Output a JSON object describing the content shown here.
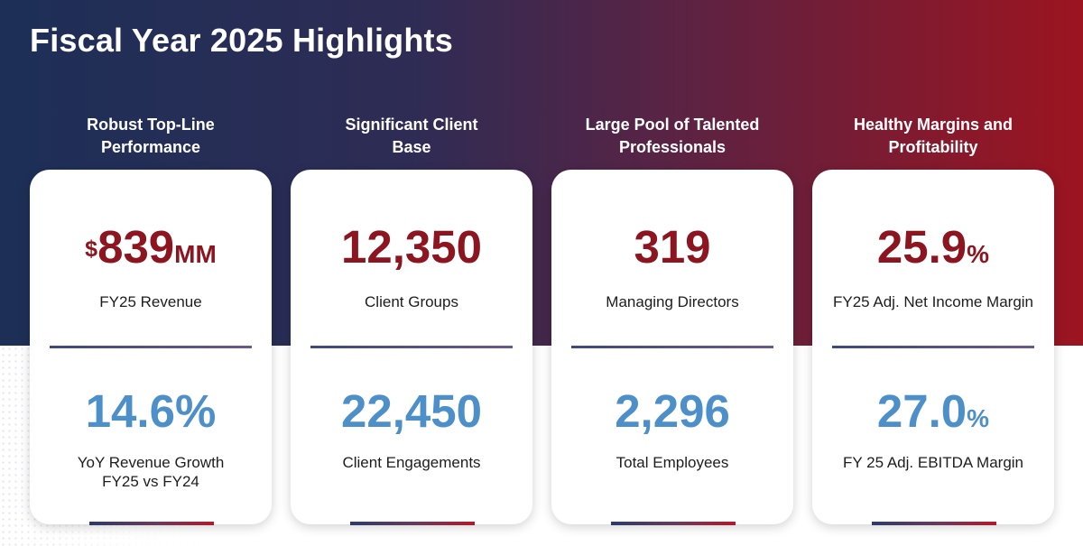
{
  "title": "Fiscal Year 2025 Highlights",
  "columns": [
    {
      "heading": "Robust Top-Line\nPerformance",
      "top_prefix": "$",
      "top_value": "839",
      "top_suffix": "MM",
      "top_label": "FY25 Revenue",
      "bottom_value": "14.6%",
      "bottom_suffix": "",
      "bottom_label": "YoY Revenue Growth\nFY25 vs FY24"
    },
    {
      "heading": "Significant Client\nBase",
      "top_prefix": "",
      "top_value": "12,350",
      "top_suffix": "",
      "top_label": "Client Groups",
      "bottom_value": "22,450",
      "bottom_suffix": "",
      "bottom_label": "Client Engagements"
    },
    {
      "heading": "Large Pool of Talented\nProfessionals",
      "top_prefix": "",
      "top_value": "319",
      "top_suffix": "",
      "top_label": "Managing Directors",
      "bottom_value": "2,296",
      "bottom_suffix": "",
      "bottom_label": "Total Employees"
    },
    {
      "heading": "Healthy Margins and\nProfitability",
      "top_prefix": "",
      "top_value": "25.9",
      "top_suffix": "%",
      "top_label": "FY25 Adj. Net Income Margin",
      "bottom_value": "27.0",
      "bottom_suffix": "%",
      "bottom_label": "FY 25 Adj. EBITDA Margin"
    }
  ],
  "colors": {
    "top_metric": "#8c1520",
    "bottom_metric": "#4d90c9",
    "header_gradient_start": "#1d2f57",
    "header_gradient_end": "#9c1420"
  }
}
